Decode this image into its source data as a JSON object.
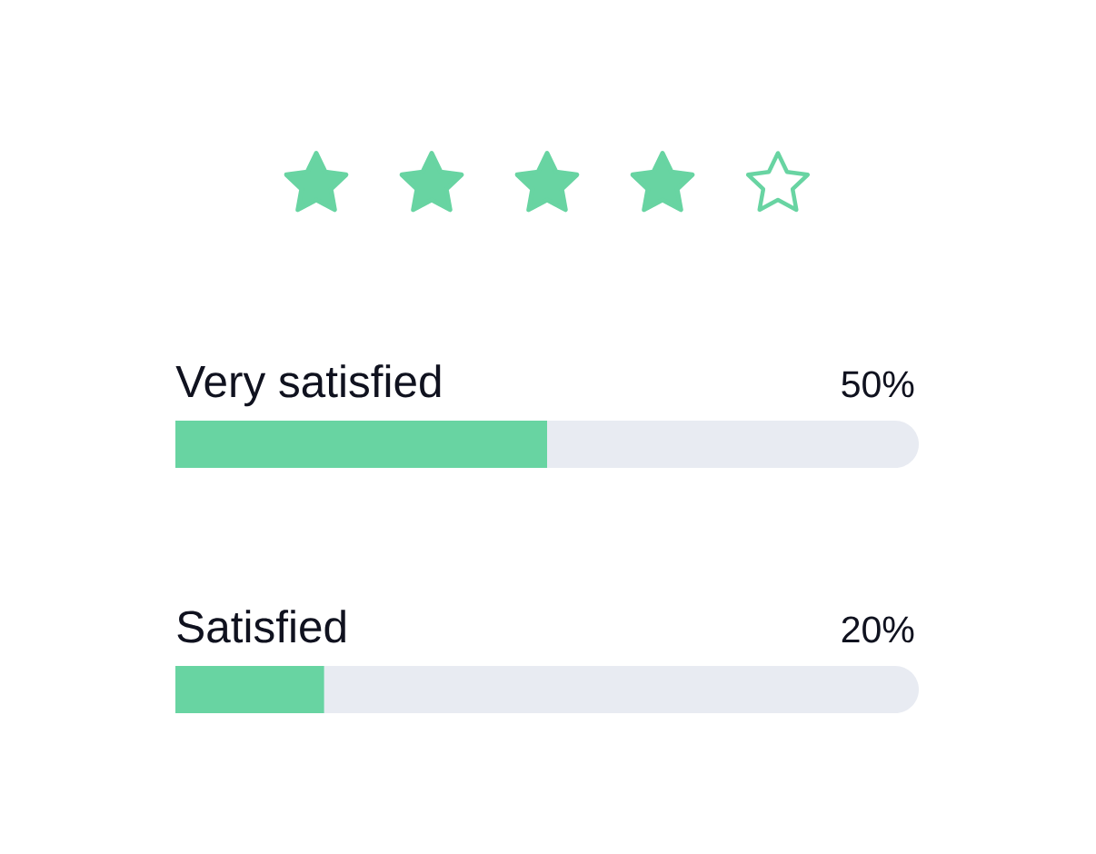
{
  "chart_data": {
    "type": "bar",
    "orientation": "horizontal",
    "categories": [
      "Very satisfied",
      "Satisfied"
    ],
    "values": [
      50,
      20
    ],
    "value_labels": [
      "50%",
      "20%"
    ],
    "color": "#68d4a2",
    "xlim": [
      0,
      100
    ],
    "tick_labels": "y"
  }
}
